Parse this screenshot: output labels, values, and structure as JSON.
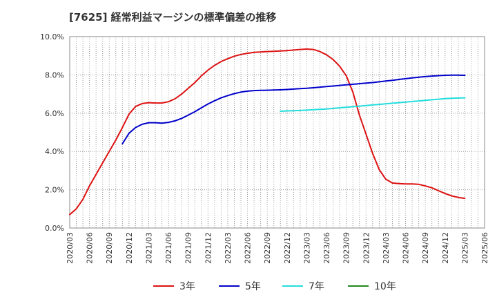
{
  "chart_data": {
    "type": "line",
    "title": "[7625]  経常利益マージンの標準偏差の推移",
    "x_tick_labels": [
      "2020/03",
      "2020/06",
      "2020/09",
      "2020/12",
      "2021/03",
      "2021/06",
      "2021/09",
      "2021/12",
      "2022/03",
      "2022/06",
      "2022/09",
      "2022/12",
      "2023/03",
      "2023/06",
      "2023/09",
      "2023/12",
      "2024/03",
      "2024/06",
      "2024/09",
      "2024/12",
      "2025/03",
      "2025/06"
    ],
    "y_tick_labels": [
      "0.0%",
      "2.0%",
      "4.0%",
      "6.0%",
      "8.0%",
      "10.0%"
    ],
    "ylim": [
      0,
      10
    ],
    "grid": true,
    "legend_position": "bottom",
    "series": [
      {
        "name": "3年",
        "color": "#dd1111",
        "points": [
          [
            "2020/03",
            0.7
          ],
          [
            "2020/04",
            1.0
          ],
          [
            "2020/05",
            1.5
          ],
          [
            "2020/06",
            2.2
          ],
          [
            "2020/07",
            2.8
          ],
          [
            "2020/08",
            3.4
          ],
          [
            "2020/09",
            4.0
          ],
          [
            "2020/10",
            4.6
          ],
          [
            "2020/11",
            5.25
          ],
          [
            "2020/12",
            5.95
          ],
          [
            "2021/01",
            6.35
          ],
          [
            "2021/02",
            6.5
          ],
          [
            "2021/03",
            6.55
          ],
          [
            "2021/04",
            6.53
          ],
          [
            "2021/05",
            6.53
          ],
          [
            "2021/06",
            6.6
          ],
          [
            "2021/07",
            6.75
          ],
          [
            "2021/08",
            7.0
          ],
          [
            "2021/09",
            7.3
          ],
          [
            "2021/10",
            7.6
          ],
          [
            "2021/11",
            7.95
          ],
          [
            "2021/12",
            8.25
          ],
          [
            "2022/01",
            8.5
          ],
          [
            "2022/02",
            8.7
          ],
          [
            "2022/03",
            8.85
          ],
          [
            "2022/04",
            8.98
          ],
          [
            "2022/05",
            9.07
          ],
          [
            "2022/06",
            9.13
          ],
          [
            "2022/07",
            9.18
          ],
          [
            "2022/08",
            9.2
          ],
          [
            "2022/09",
            9.22
          ],
          [
            "2022/10",
            9.23
          ],
          [
            "2022/11",
            9.25
          ],
          [
            "2022/12",
            9.27
          ],
          [
            "2023/01",
            9.3
          ],
          [
            "2023/02",
            9.33
          ],
          [
            "2023/03",
            9.35
          ],
          [
            "2023/04",
            9.33
          ],
          [
            "2023/05",
            9.22
          ],
          [
            "2023/06",
            9.05
          ],
          [
            "2023/07",
            8.8
          ],
          [
            "2023/08",
            8.45
          ],
          [
            "2023/09",
            7.95
          ],
          [
            "2023/10",
            7.1
          ],
          [
            "2023/11",
            5.9
          ],
          [
            "2023/12",
            4.9
          ],
          [
            "2024/01",
            3.9
          ],
          [
            "2024/02",
            3.05
          ],
          [
            "2024/03",
            2.55
          ],
          [
            "2024/04",
            2.35
          ],
          [
            "2024/05",
            2.32
          ],
          [
            "2024/06",
            2.3
          ],
          [
            "2024/07",
            2.3
          ],
          [
            "2024/08",
            2.28
          ],
          [
            "2024/09",
            2.2
          ],
          [
            "2024/10",
            2.1
          ],
          [
            "2024/11",
            1.95
          ],
          [
            "2024/12",
            1.8
          ],
          [
            "2025/01",
            1.68
          ],
          [
            "2025/02",
            1.6
          ],
          [
            "2025/03",
            1.55
          ]
        ]
      },
      {
        "name": "5年",
        "color": "#0000cc",
        "points": [
          [
            "2020/11",
            4.4
          ],
          [
            "2020/12",
            4.95
          ],
          [
            "2021/01",
            5.25
          ],
          [
            "2021/02",
            5.42
          ],
          [
            "2021/03",
            5.5
          ],
          [
            "2021/04",
            5.5
          ],
          [
            "2021/05",
            5.48
          ],
          [
            "2021/06",
            5.52
          ],
          [
            "2021/07",
            5.6
          ],
          [
            "2021/08",
            5.73
          ],
          [
            "2021/09",
            5.9
          ],
          [
            "2021/10",
            6.08
          ],
          [
            "2021/11",
            6.28
          ],
          [
            "2021/12",
            6.48
          ],
          [
            "2022/01",
            6.65
          ],
          [
            "2022/02",
            6.8
          ],
          [
            "2022/03",
            6.92
          ],
          [
            "2022/04",
            7.02
          ],
          [
            "2022/05",
            7.1
          ],
          [
            "2022/06",
            7.15
          ],
          [
            "2022/07",
            7.18
          ],
          [
            "2022/08",
            7.19
          ],
          [
            "2022/09",
            7.2
          ],
          [
            "2022/10",
            7.21
          ],
          [
            "2022/11",
            7.22
          ],
          [
            "2022/12",
            7.24
          ],
          [
            "2023/01",
            7.26
          ],
          [
            "2023/02",
            7.28
          ],
          [
            "2023/03",
            7.3
          ],
          [
            "2023/04",
            7.33
          ],
          [
            "2023/05",
            7.36
          ],
          [
            "2023/06",
            7.39
          ],
          [
            "2023/07",
            7.42
          ],
          [
            "2023/08",
            7.45
          ],
          [
            "2023/09",
            7.48
          ],
          [
            "2023/10",
            7.51
          ],
          [
            "2023/11",
            7.54
          ],
          [
            "2023/12",
            7.57
          ],
          [
            "2024/01",
            7.6
          ],
          [
            "2024/02",
            7.64
          ],
          [
            "2024/03",
            7.68
          ],
          [
            "2024/04",
            7.72
          ],
          [
            "2024/05",
            7.76
          ],
          [
            "2024/06",
            7.8
          ],
          [
            "2024/07",
            7.84
          ],
          [
            "2024/08",
            7.88
          ],
          [
            "2024/09",
            7.91
          ],
          [
            "2024/10",
            7.94
          ],
          [
            "2024/11",
            7.96
          ],
          [
            "2024/12",
            7.98
          ],
          [
            "2025/01",
            7.99
          ],
          [
            "2025/02",
            7.99
          ],
          [
            "2025/03",
            7.98
          ]
        ]
      },
      {
        "name": "7年",
        "color": "#22dddd",
        "points": [
          [
            "2022/11",
            6.1
          ],
          [
            "2022/12",
            6.12
          ],
          [
            "2023/01",
            6.13
          ],
          [
            "2023/02",
            6.14
          ],
          [
            "2023/03",
            6.16
          ],
          [
            "2023/04",
            6.18
          ],
          [
            "2023/05",
            6.2
          ],
          [
            "2023/06",
            6.22
          ],
          [
            "2023/07",
            6.25
          ],
          [
            "2023/08",
            6.28
          ],
          [
            "2023/09",
            6.31
          ],
          [
            "2023/10",
            6.34
          ],
          [
            "2023/11",
            6.37
          ],
          [
            "2023/12",
            6.4
          ],
          [
            "2024/01",
            6.43
          ],
          [
            "2024/02",
            6.46
          ],
          [
            "2024/03",
            6.49
          ],
          [
            "2024/04",
            6.52
          ],
          [
            "2024/05",
            6.55
          ],
          [
            "2024/06",
            6.58
          ],
          [
            "2024/07",
            6.61
          ],
          [
            "2024/08",
            6.64
          ],
          [
            "2024/09",
            6.67
          ],
          [
            "2024/10",
            6.7
          ],
          [
            "2024/11",
            6.73
          ],
          [
            "2024/12",
            6.76
          ],
          [
            "2025/01",
            6.78
          ],
          [
            "2025/02",
            6.79
          ],
          [
            "2025/03",
            6.8
          ]
        ]
      },
      {
        "name": "10年",
        "color": "#228822",
        "points": []
      }
    ]
  }
}
